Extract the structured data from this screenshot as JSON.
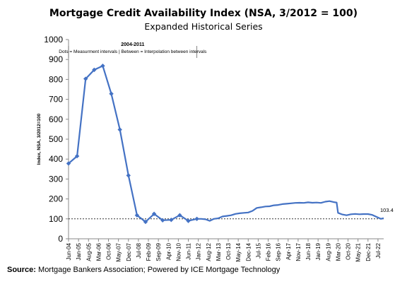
{
  "chart_data": {
    "type": "line",
    "title": "Mortgage Credit Availability Index (NSA, 3/2012 = 100)",
    "subtitle": "Expanded Historical Series",
    "ylabel": "Index, NSA, 3/2012=100",
    "ylim": [
      0,
      1000
    ],
    "yticks": [
      0,
      100,
      200,
      300,
      400,
      500,
      600,
      700,
      800,
      900,
      1000
    ],
    "x_tick_labels": [
      "Jun-04",
      "Jan-05",
      "Aug-05",
      "Mar-06",
      "Oct-06",
      "May-07",
      "Dec-07",
      "Jul-08",
      "Feb-09",
      "Sep-09",
      "Apr-10",
      "Nov-10",
      "Jun-11",
      "Jan-12",
      "Aug-12",
      "Mar-13",
      "Oct-13",
      "May-14",
      "Dec-14",
      "Jul-15",
      "Feb-16",
      "Sep-16",
      "Apr-17",
      "Nov-17",
      "Jun-18",
      "Jan-19",
      "Aug-19",
      "Mar-20",
      "Oct-20",
      "May-21",
      "Dec-21",
      "Jul-22"
    ],
    "x_start": "2004-06",
    "x_end": "2022-11",
    "reference_line": 100,
    "annotation": {
      "period": "2004-2011",
      "text": "Dots = Measurment intervals  |  Between = Interpolation between intervals"
    },
    "last_value_label": "103.4",
    "series": [
      {
        "markers_through": "2011-12",
        "points": [
          [
            "2004-06",
            378
          ],
          [
            "2004-12",
            415
          ],
          [
            "2005-06",
            803
          ],
          [
            "2005-12",
            848
          ],
          [
            "2006-06",
            868
          ],
          [
            "2006-12",
            728
          ],
          [
            "2007-06",
            548
          ],
          [
            "2007-12",
            318
          ],
          [
            "2008-06",
            118
          ],
          [
            "2008-12",
            85
          ],
          [
            "2009-06",
            125
          ],
          [
            "2009-12",
            93
          ],
          [
            "2010-06",
            95
          ],
          [
            "2010-12",
            118
          ],
          [
            "2011-06",
            90
          ],
          [
            "2011-12",
            100
          ],
          [
            "2012-03",
            100
          ],
          [
            "2012-06",
            98
          ],
          [
            "2012-09",
            90
          ],
          [
            "2012-12",
            100
          ],
          [
            "2013-03",
            103
          ],
          [
            "2013-06",
            112
          ],
          [
            "2013-09",
            115
          ],
          [
            "2013-12",
            118
          ],
          [
            "2014-03",
            125
          ],
          [
            "2014-06",
            128
          ],
          [
            "2014-09",
            130
          ],
          [
            "2014-12",
            132
          ],
          [
            "2015-03",
            140
          ],
          [
            "2015-06",
            155
          ],
          [
            "2015-09",
            158
          ],
          [
            "2015-12",
            162
          ],
          [
            "2016-03",
            163
          ],
          [
            "2016-06",
            168
          ],
          [
            "2016-09",
            170
          ],
          [
            "2016-12",
            174
          ],
          [
            "2017-03",
            176
          ],
          [
            "2017-06",
            178
          ],
          [
            "2017-09",
            180
          ],
          [
            "2017-12",
            181
          ],
          [
            "2018-03",
            180
          ],
          [
            "2018-06",
            183
          ],
          [
            "2018-09",
            181
          ],
          [
            "2018-12",
            182
          ],
          [
            "2019-03",
            180
          ],
          [
            "2019-06",
            186
          ],
          [
            "2019-09",
            189
          ],
          [
            "2019-12",
            184
          ],
          [
            "2020-02",
            182
          ],
          [
            "2020-03",
            130
          ],
          [
            "2020-06",
            122
          ],
          [
            "2020-09",
            118
          ],
          [
            "2020-12",
            123
          ],
          [
            "2021-03",
            125
          ],
          [
            "2021-06",
            123
          ],
          [
            "2021-09",
            124
          ],
          [
            "2021-12",
            124
          ],
          [
            "2022-03",
            120
          ],
          [
            "2022-06",
            110
          ],
          [
            "2022-09",
            100
          ],
          [
            "2022-11",
            103.4
          ]
        ]
      }
    ]
  },
  "source": {
    "label": "Source:",
    "text": "Mortgage Bankers Association; Powered by ICE Mortgage Technology"
  },
  "colors": {
    "line": "#4472c4"
  }
}
